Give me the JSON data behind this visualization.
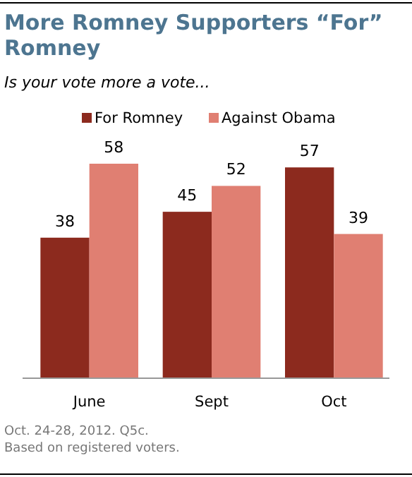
{
  "chart_data": {
    "type": "bar",
    "title": "More Romney Supporters “For” Romney",
    "subtitle": "Is your vote more a vote...",
    "categories": [
      "June",
      "Sept",
      "Oct"
    ],
    "series": [
      {
        "name": "For Romney",
        "color": "#8c2a1e",
        "values": [
          38,
          45,
          57
        ]
      },
      {
        "name": "Against Obama",
        "color": "#e07f72",
        "values": [
          58,
          52,
          39
        ]
      }
    ],
    "data_labels": true,
    "legend": "top",
    "annotations": [
      "Oct. 24-28, 2012. Q5c.",
      "Based on registered voters."
    ]
  }
}
